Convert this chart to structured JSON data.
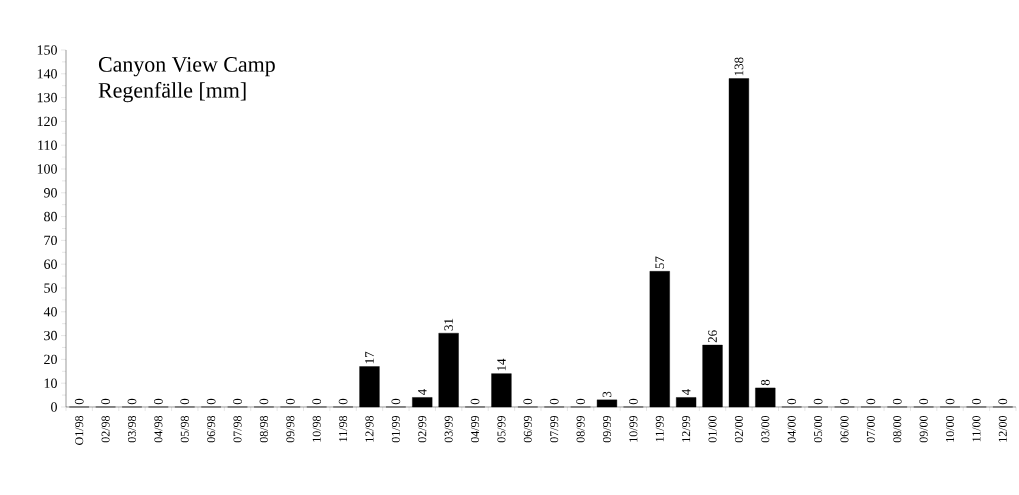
{
  "chart_data": {
    "type": "bar",
    "title": "Canyon View Camp",
    "subtitle": "Regenfälle [mm]",
    "categories": [
      "O1/98",
      "02/98",
      "03/98",
      "04/98",
      "05/98",
      "06/98",
      "07/98",
      "08/98",
      "09/98",
      "10/98",
      "11/98",
      "12/98",
      "01/99",
      "02/99",
      "03/99",
      "04/99",
      "05/99",
      "06/99",
      "07/99",
      "08/99",
      "09/99",
      "10/99",
      "11/99",
      "12/99",
      "01/00",
      "02/00",
      "03/00",
      "04/00",
      "05/00",
      "06/00",
      "07/00",
      "08/00",
      "09/00",
      "10/00",
      "11/00",
      "12/00"
    ],
    "values": [
      0,
      0,
      0,
      0,
      0,
      0,
      0,
      0,
      0,
      0,
      0,
      17,
      0,
      4,
      31,
      0,
      14,
      0,
      0,
      0,
      3,
      0,
      57,
      4,
      26,
      138,
      8,
      0,
      0,
      0,
      0,
      0,
      0,
      0,
      0,
      0
    ],
    "color": "#000000",
    "ylim": [
      0,
      150
    ],
    "yticks": [
      0,
      10,
      20,
      30,
      40,
      50,
      60,
      70,
      80,
      90,
      100,
      110,
      120,
      130,
      140,
      150
    ],
    "data_labels": true
  }
}
